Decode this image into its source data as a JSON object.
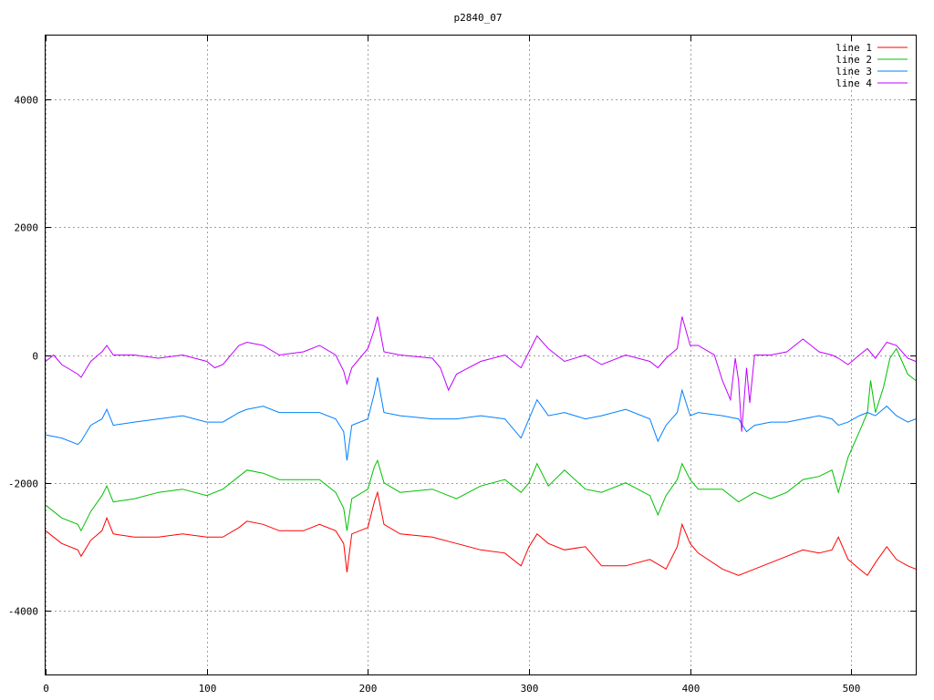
{
  "chart_data": {
    "type": "line",
    "title": "p2840_07",
    "xlabel": "",
    "ylabel": "",
    "xlim": [
      0,
      540
    ],
    "ylim": [
      -5000,
      5000
    ],
    "xticks": [
      0,
      100,
      200,
      300,
      400,
      500
    ],
    "yticks": [
      -4000,
      -2000,
      0,
      2000,
      4000
    ],
    "grid": true,
    "legend_position": "top-right",
    "series": [
      {
        "name": "line 1",
        "color": "#ff0000",
        "points": [
          [
            0,
            -2750
          ],
          [
            10,
            -2950
          ],
          [
            20,
            -3050
          ],
          [
            22,
            -3150
          ],
          [
            28,
            -2900
          ],
          [
            35,
            -2750
          ],
          [
            38,
            -2550
          ],
          [
            42,
            -2800
          ],
          [
            55,
            -2850
          ],
          [
            70,
            -2850
          ],
          [
            85,
            -2800
          ],
          [
            100,
            -2850
          ],
          [
            110,
            -2850
          ],
          [
            120,
            -2700
          ],
          [
            125,
            -2600
          ],
          [
            135,
            -2650
          ],
          [
            145,
            -2750
          ],
          [
            160,
            -2750
          ],
          [
            170,
            -2650
          ],
          [
            180,
            -2750
          ],
          [
            185,
            -2950
          ],
          [
            187,
            -3400
          ],
          [
            190,
            -2800
          ],
          [
            200,
            -2700
          ],
          [
            204,
            -2300
          ],
          [
            206,
            -2150
          ],
          [
            210,
            -2650
          ],
          [
            220,
            -2800
          ],
          [
            240,
            -2850
          ],
          [
            255,
            -2950
          ],
          [
            270,
            -3050
          ],
          [
            285,
            -3100
          ],
          [
            295,
            -3300
          ],
          [
            300,
            -3000
          ],
          [
            305,
            -2800
          ],
          [
            312,
            -2950
          ],
          [
            322,
            -3050
          ],
          [
            335,
            -3000
          ],
          [
            345,
            -3300
          ],
          [
            360,
            -3300
          ],
          [
            375,
            -3200
          ],
          [
            385,
            -3350
          ],
          [
            392,
            -3000
          ],
          [
            395,
            -2650
          ],
          [
            400,
            -2950
          ],
          [
            405,
            -3100
          ],
          [
            420,
            -3350
          ],
          [
            430,
            -3450
          ],
          [
            440,
            -3350
          ],
          [
            450,
            -3250
          ],
          [
            460,
            -3150
          ],
          [
            470,
            -3050
          ],
          [
            480,
            -3100
          ],
          [
            488,
            -3050
          ],
          [
            492,
            -2850
          ],
          [
            498,
            -3200
          ],
          [
            505,
            -3350
          ],
          [
            510,
            -3450
          ],
          [
            515,
            -3250
          ],
          [
            522,
            -3000
          ],
          [
            528,
            -3200
          ],
          [
            535,
            -3300
          ],
          [
            540,
            -3350
          ]
        ]
      },
      {
        "name": "line 2",
        "color": "#00c000",
        "points": [
          [
            0,
            -2350
          ],
          [
            10,
            -2550
          ],
          [
            20,
            -2650
          ],
          [
            22,
            -2750
          ],
          [
            28,
            -2450
          ],
          [
            35,
            -2200
          ],
          [
            38,
            -2050
          ],
          [
            42,
            -2300
          ],
          [
            55,
            -2250
          ],
          [
            70,
            -2150
          ],
          [
            85,
            -2100
          ],
          [
            100,
            -2200
          ],
          [
            110,
            -2100
          ],
          [
            120,
            -1900
          ],
          [
            125,
            -1800
          ],
          [
            135,
            -1850
          ],
          [
            145,
            -1950
          ],
          [
            160,
            -1950
          ],
          [
            170,
            -1950
          ],
          [
            180,
            -2150
          ],
          [
            185,
            -2400
          ],
          [
            187,
            -2750
          ],
          [
            190,
            -2250
          ],
          [
            200,
            -2100
          ],
          [
            204,
            -1750
          ],
          [
            206,
            -1650
          ],
          [
            210,
            -2000
          ],
          [
            220,
            -2150
          ],
          [
            240,
            -2100
          ],
          [
            255,
            -2250
          ],
          [
            270,
            -2050
          ],
          [
            285,
            -1950
          ],
          [
            295,
            -2150
          ],
          [
            300,
            -2000
          ],
          [
            305,
            -1700
          ],
          [
            312,
            -2050
          ],
          [
            322,
            -1800
          ],
          [
            335,
            -2100
          ],
          [
            345,
            -2150
          ],
          [
            360,
            -2000
          ],
          [
            375,
            -2200
          ],
          [
            380,
            -2500
          ],
          [
            385,
            -2200
          ],
          [
            392,
            -1950
          ],
          [
            395,
            -1700
          ],
          [
            400,
            -1950
          ],
          [
            405,
            -2100
          ],
          [
            420,
            -2100
          ],
          [
            430,
            -2300
          ],
          [
            440,
            -2150
          ],
          [
            450,
            -2250
          ],
          [
            460,
            -2150
          ],
          [
            470,
            -1950
          ],
          [
            480,
            -1900
          ],
          [
            488,
            -1800
          ],
          [
            492,
            -2150
          ],
          [
            498,
            -1600
          ],
          [
            505,
            -1200
          ],
          [
            510,
            -900
          ],
          [
            512,
            -400
          ],
          [
            515,
            -900
          ],
          [
            520,
            -500
          ],
          [
            524,
            -50
          ],
          [
            528,
            100
          ],
          [
            535,
            -300
          ],
          [
            540,
            -400
          ]
        ]
      },
      {
        "name": "line 3",
        "color": "#0080ff",
        "points": [
          [
            0,
            -1250
          ],
          [
            10,
            -1300
          ],
          [
            20,
            -1400
          ],
          [
            22,
            -1350
          ],
          [
            28,
            -1100
          ],
          [
            35,
            -1000
          ],
          [
            38,
            -850
          ],
          [
            42,
            -1100
          ],
          [
            55,
            -1050
          ],
          [
            70,
            -1000
          ],
          [
            85,
            -950
          ],
          [
            100,
            -1050
          ],
          [
            110,
            -1050
          ],
          [
            120,
            -900
          ],
          [
            125,
            -850
          ],
          [
            135,
            -800
          ],
          [
            145,
            -900
          ],
          [
            160,
            -900
          ],
          [
            170,
            -900
          ],
          [
            180,
            -1000
          ],
          [
            185,
            -1200
          ],
          [
            187,
            -1650
          ],
          [
            190,
            -1100
          ],
          [
            200,
            -1000
          ],
          [
            204,
            -600
          ],
          [
            206,
            -350
          ],
          [
            210,
            -900
          ],
          [
            220,
            -950
          ],
          [
            240,
            -1000
          ],
          [
            255,
            -1000
          ],
          [
            270,
            -950
          ],
          [
            285,
            -1000
          ],
          [
            295,
            -1300
          ],
          [
            300,
            -1000
          ],
          [
            305,
            -700
          ],
          [
            312,
            -950
          ],
          [
            322,
            -900
          ],
          [
            335,
            -1000
          ],
          [
            345,
            -950
          ],
          [
            360,
            -850
          ],
          [
            375,
            -1000
          ],
          [
            380,
            -1350
          ],
          [
            385,
            -1100
          ],
          [
            392,
            -900
          ],
          [
            395,
            -550
          ],
          [
            400,
            -950
          ],
          [
            405,
            -900
          ],
          [
            420,
            -950
          ],
          [
            430,
            -1000
          ],
          [
            435,
            -1200
          ],
          [
            440,
            -1100
          ],
          [
            450,
            -1050
          ],
          [
            460,
            -1050
          ],
          [
            470,
            -1000
          ],
          [
            480,
            -950
          ],
          [
            488,
            -1000
          ],
          [
            492,
            -1100
          ],
          [
            498,
            -1050
          ],
          [
            505,
            -950
          ],
          [
            510,
            -900
          ],
          [
            515,
            -950
          ],
          [
            522,
            -800
          ],
          [
            528,
            -950
          ],
          [
            535,
            -1050
          ],
          [
            540,
            -1000
          ]
        ]
      },
      {
        "name": "line 4",
        "color": "#c000ff",
        "points": [
          [
            0,
            -100
          ],
          [
            5,
            0
          ],
          [
            10,
            -150
          ],
          [
            20,
            -300
          ],
          [
            22,
            -350
          ],
          [
            28,
            -100
          ],
          [
            35,
            50
          ],
          [
            38,
            150
          ],
          [
            42,
            0
          ],
          [
            55,
            0
          ],
          [
            70,
            -50
          ],
          [
            85,
            0
          ],
          [
            100,
            -100
          ],
          [
            105,
            -200
          ],
          [
            110,
            -150
          ],
          [
            120,
            150
          ],
          [
            125,
            200
          ],
          [
            135,
            150
          ],
          [
            145,
            0
          ],
          [
            160,
            50
          ],
          [
            170,
            150
          ],
          [
            180,
            0
          ],
          [
            185,
            -250
          ],
          [
            187,
            -450
          ],
          [
            190,
            -200
          ],
          [
            200,
            100
          ],
          [
            204,
            400
          ],
          [
            206,
            600
          ],
          [
            210,
            50
          ],
          [
            220,
            0
          ],
          [
            240,
            -50
          ],
          [
            245,
            -200
          ],
          [
            250,
            -550
          ],
          [
            255,
            -300
          ],
          [
            270,
            -100
          ],
          [
            285,
            0
          ],
          [
            295,
            -200
          ],
          [
            300,
            50
          ],
          [
            305,
            300
          ],
          [
            312,
            100
          ],
          [
            322,
            -100
          ],
          [
            335,
            0
          ],
          [
            345,
            -150
          ],
          [
            360,
            0
          ],
          [
            375,
            -100
          ],
          [
            380,
            -200
          ],
          [
            385,
            -50
          ],
          [
            392,
            100
          ],
          [
            395,
            600
          ],
          [
            400,
            150
          ],
          [
            405,
            150
          ],
          [
            415,
            0
          ],
          [
            420,
            -400
          ],
          [
            425,
            -700
          ],
          [
            428,
            -50
          ],
          [
            430,
            -400
          ],
          [
            432,
            -1200
          ],
          [
            435,
            -200
          ],
          [
            437,
            -750
          ],
          [
            440,
            0
          ],
          [
            450,
            0
          ],
          [
            460,
            50
          ],
          [
            470,
            250
          ],
          [
            480,
            50
          ],
          [
            488,
            0
          ],
          [
            492,
            -50
          ],
          [
            498,
            -150
          ],
          [
            505,
            0
          ],
          [
            510,
            100
          ],
          [
            515,
            -50
          ],
          [
            522,
            200
          ],
          [
            528,
            150
          ],
          [
            535,
            -50
          ],
          [
            540,
            -100
          ]
        ]
      }
    ]
  }
}
